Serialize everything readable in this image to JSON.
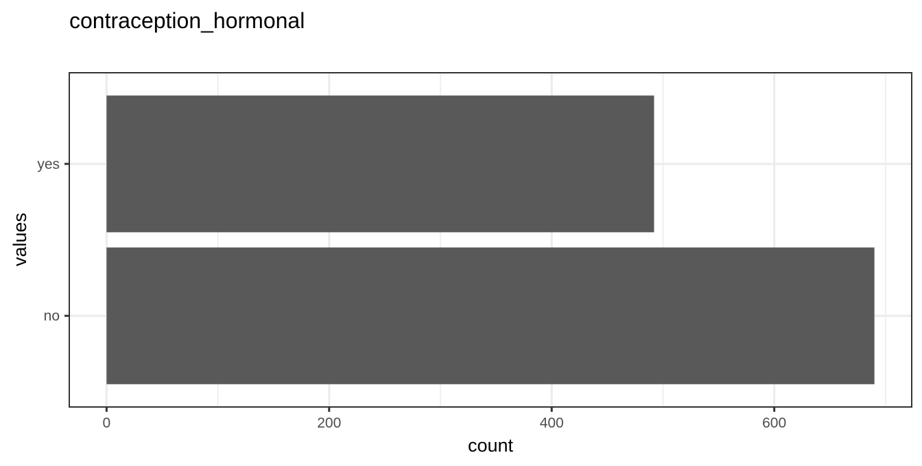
{
  "chart_data": {
    "type": "bar",
    "orientation": "horizontal",
    "title": "contraception_hormonal",
    "xlabel": "count",
    "ylabel": "values",
    "categories": [
      "no",
      "yes"
    ],
    "values": [
      690,
      492
    ],
    "xlim": [
      -33.5,
      723.5
    ],
    "xticks": [
      0,
      200,
      400,
      600
    ],
    "xtick_labels": [
      "0",
      "200",
      "400",
      "600"
    ],
    "grid": true,
    "bar_color": "#595959",
    "grid_color": "#ebebeb",
    "border_color": "#333333"
  }
}
